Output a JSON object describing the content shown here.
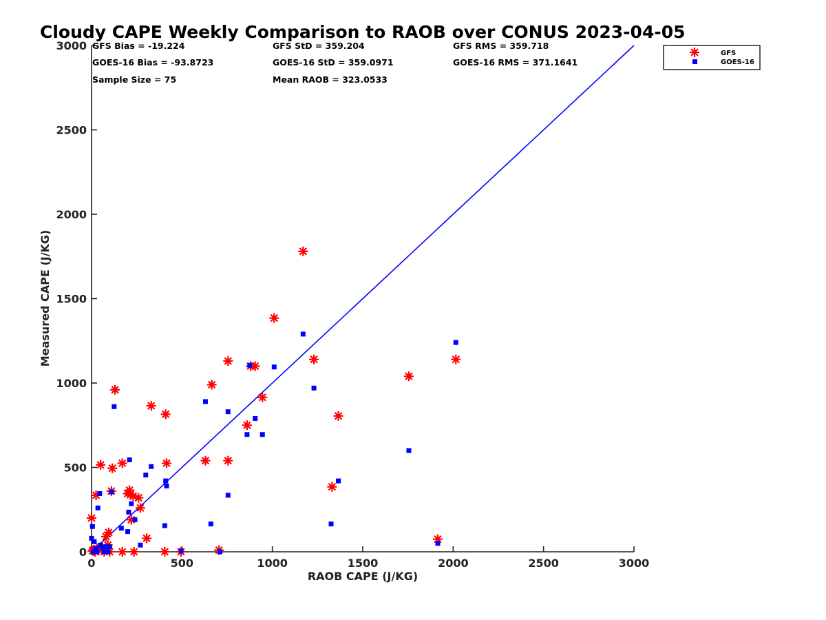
{
  "chart_data": {
    "type": "scatter",
    "title": "Cloudy CAPE Weekly Comparison to RAOB over CONUS 2023-04-05",
    "xlabel": "RAOB CAPE (J/KG)",
    "ylabel": "Measured CAPE (J/KG)",
    "xlim": [
      0,
      3000
    ],
    "ylim": [
      0,
      3000
    ],
    "xticks": [
      0,
      500,
      1000,
      1500,
      2000,
      2500,
      3000
    ],
    "yticks": [
      0,
      500,
      1000,
      1500,
      2000,
      2500,
      3000
    ],
    "grid": false,
    "legend_position": "top-right, outside plot",
    "stats": [
      "GFS Bias = -19.224",
      "GFS StD = 359.204",
      "GFS RMS = 359.718",
      "GOES-16 Bias = -93.8723",
      "GOES-16 StD = 359.0971",
      "GOES-16 RMS = 371.1641",
      "Sample Size = 75",
      "Mean RAOB = 323.0533"
    ],
    "reference_line": {
      "x": [
        0,
        3000
      ],
      "y": [
        0,
        3000
      ],
      "color": "#0000ff"
    },
    "series": [
      {
        "name": "GFS",
        "marker": "asterisk",
        "color": "#ff0000",
        "points": [
          [
            0,
            200
          ],
          [
            5,
            5
          ],
          [
            10,
            10
          ],
          [
            15,
            5
          ],
          [
            20,
            0
          ],
          [
            25,
            335
          ],
          [
            30,
            20
          ],
          [
            40,
            10
          ],
          [
            50,
            515
          ],
          [
            60,
            20
          ],
          [
            70,
            0
          ],
          [
            80,
            90
          ],
          [
            90,
            40
          ],
          [
            95,
            115
          ],
          [
            100,
            0
          ],
          [
            110,
            360
          ],
          [
            115,
            495
          ],
          [
            130,
            960
          ],
          [
            170,
            525
          ],
          [
            170,
            0
          ],
          [
            200,
            345
          ],
          [
            210,
            365
          ],
          [
            215,
            340
          ],
          [
            220,
            190
          ],
          [
            230,
            330
          ],
          [
            235,
            0
          ],
          [
            260,
            320
          ],
          [
            270,
            260
          ],
          [
            305,
            80
          ],
          [
            330,
            865
          ],
          [
            405,
            0
          ],
          [
            410,
            815
          ],
          [
            415,
            525
          ],
          [
            495,
            0
          ],
          [
            630,
            540
          ],
          [
            665,
            990
          ],
          [
            705,
            10
          ],
          [
            755,
            540
          ],
          [
            755,
            1130
          ],
          [
            860,
            750
          ],
          [
            880,
            1100
          ],
          [
            905,
            1100
          ],
          [
            945,
            915
          ],
          [
            1010,
            1385
          ],
          [
            1170,
            1780
          ],
          [
            1230,
            1140
          ],
          [
            1330,
            385
          ],
          [
            1365,
            805
          ],
          [
            1755,
            1040
          ],
          [
            1915,
            75
          ],
          [
            2015,
            1140
          ]
        ]
      },
      {
        "name": "GOES-16",
        "marker": "square",
        "color": "#0000ff",
        "points": [
          [
            0,
            80
          ],
          [
            5,
            150
          ],
          [
            10,
            0
          ],
          [
            15,
            60
          ],
          [
            20,
            5
          ],
          [
            25,
            20
          ],
          [
            30,
            0
          ],
          [
            35,
            260
          ],
          [
            45,
            345
          ],
          [
            50,
            40
          ],
          [
            60,
            25
          ],
          [
            70,
            0
          ],
          [
            80,
            30
          ],
          [
            90,
            0
          ],
          [
            100,
            30
          ],
          [
            110,
            355
          ],
          [
            125,
            860
          ],
          [
            165,
            140
          ],
          [
            200,
            120
          ],
          [
            205,
            235
          ],
          [
            210,
            545
          ],
          [
            220,
            285
          ],
          [
            240,
            190
          ],
          [
            270,
            40
          ],
          [
            300,
            455
          ],
          [
            330,
            505
          ],
          [
            405,
            155
          ],
          [
            410,
            420
          ],
          [
            415,
            390
          ],
          [
            495,
            5
          ],
          [
            630,
            890
          ],
          [
            660,
            165
          ],
          [
            710,
            0
          ],
          [
            755,
            335
          ],
          [
            755,
            830
          ],
          [
            860,
            695
          ],
          [
            875,
            1105
          ],
          [
            905,
            790
          ],
          [
            945,
            695
          ],
          [
            1010,
            1095
          ],
          [
            1170,
            1290
          ],
          [
            1230,
            970
          ],
          [
            1325,
            165
          ],
          [
            1365,
            420
          ],
          [
            1755,
            600
          ],
          [
            1915,
            50
          ],
          [
            2015,
            1240
          ]
        ]
      }
    ]
  }
}
